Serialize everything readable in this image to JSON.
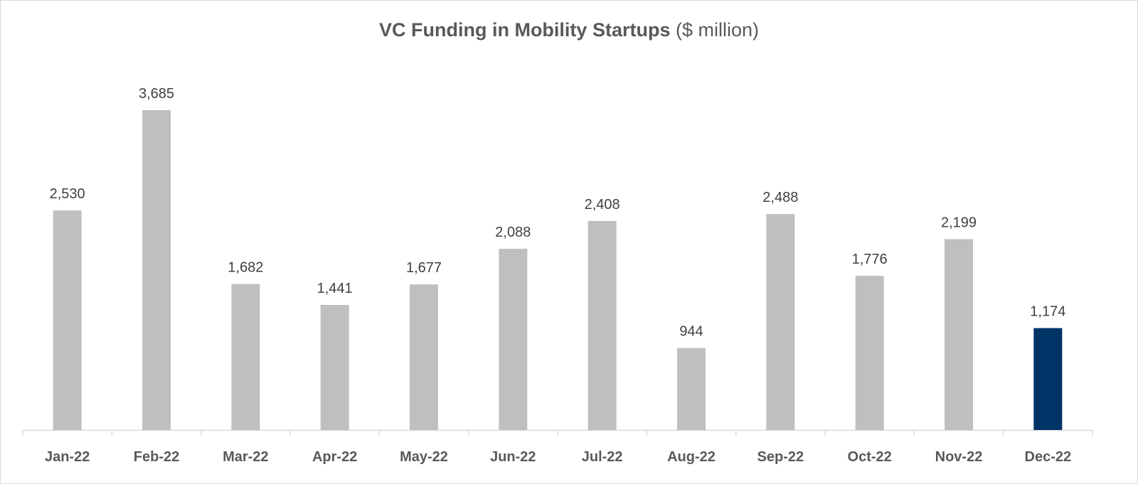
{
  "chart_data": {
    "type": "bar",
    "title": "VC Funding in Mobility Startups",
    "subtitle": "($ million)",
    "categories": [
      "Jan-22",
      "Feb-22",
      "Mar-22",
      "Apr-22",
      "May-22",
      "Jun-22",
      "Jul-22",
      "Aug-22",
      "Sep-22",
      "Oct-22",
      "Nov-22",
      "Dec-22"
    ],
    "values": [
      2530,
      3685,
      1682,
      1441,
      1677,
      2088,
      2408,
      944,
      2488,
      1776,
      2199,
      1174
    ],
    "data_labels": [
      "2,530",
      "3,685",
      "1,682",
      "1,441",
      "1,677",
      "2,088",
      "2,408",
      "944",
      "2,488",
      "1,776",
      "2,199",
      "1,174"
    ],
    "xlabel": "",
    "ylabel": "",
    "ylim": [
      0,
      3900
    ],
    "grid": false,
    "legend": "none",
    "colors": {
      "default": "#bfbfbf",
      "highlight": "#003366",
      "text": "#404040",
      "axis": "#d9d9d9"
    },
    "highlight_index": 11
  }
}
